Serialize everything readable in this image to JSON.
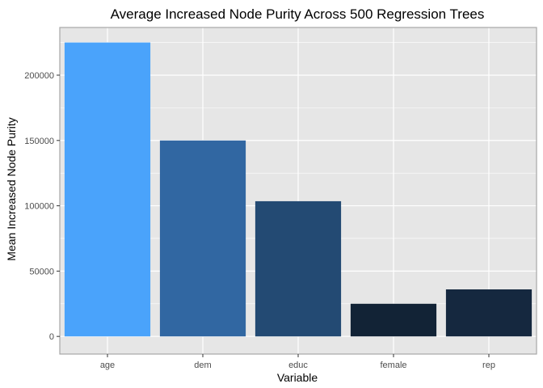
{
  "chart_data": {
    "type": "bar",
    "title": "Average Increased Node Purity Across 500 Regression Trees",
    "xlabel": "Variable",
    "ylabel": "Mean Increased Node Purity",
    "categories": [
      "age",
      "dem",
      "educ",
      "female",
      "rep"
    ],
    "values": [
      225000,
      150000,
      103500,
      25000,
      36000
    ],
    "bar_colors": [
      "#4aa3fb",
      "#3167a2",
      "#234a73",
      "#122336",
      "#15283f"
    ],
    "ylim": [
      -13500,
      236500
    ],
    "yticks": [
      0,
      50000,
      100000,
      150000,
      200000
    ],
    "ytick_labels": [
      "0",
      "50000",
      "100000",
      "150000",
      "200000"
    ],
    "grid": true,
    "legend": "none",
    "panel_background": "#e6e6e6",
    "grid_color": "#ffffff"
  }
}
